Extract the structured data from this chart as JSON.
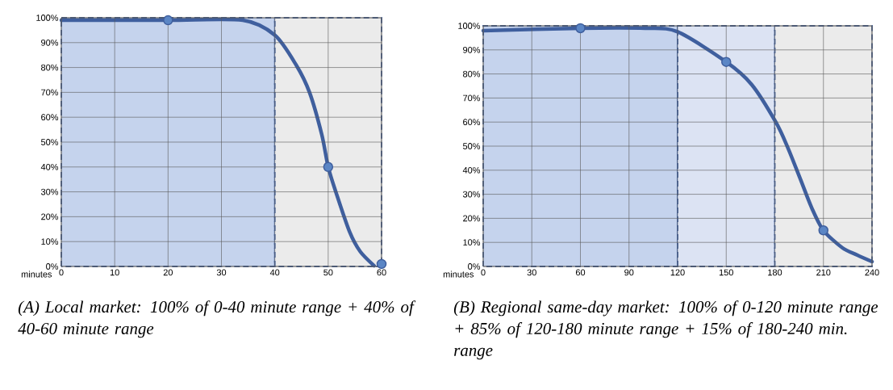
{
  "chart_data": [
    {
      "type": "line",
      "xlabel": "minutes",
      "xlim": [
        0,
        60
      ],
      "xticks": [
        0,
        10,
        20,
        30,
        40,
        50,
        60
      ],
      "ylim": [
        0,
        100
      ],
      "yticks": [
        {
          "value": 0,
          "label": "0%"
        },
        {
          "value": 10,
          "label": "10%"
        },
        {
          "value": 20,
          "label": "20%"
        },
        {
          "value": 30,
          "label": "30%"
        },
        {
          "value": 40,
          "label": "40%"
        },
        {
          "value": 50,
          "label": "50%"
        },
        {
          "value": 60,
          "label": "60%"
        },
        {
          "value": 70,
          "label": "70%"
        },
        {
          "value": 80,
          "label": "80%"
        },
        {
          "value": 90,
          "label": "90%"
        },
        {
          "value": 100,
          "label": "100%"
        }
      ],
      "grid": true,
      "bands": [
        {
          "axis": "x",
          "from": 0,
          "to": 40,
          "color": "#c5d3ed"
        },
        {
          "axis": "x",
          "from": 40,
          "to": 60,
          "color": "#ebebeb"
        }
      ],
      "series": [
        {
          "marker": "none",
          "color": "#3f5f9e",
          "x": [
            0,
            20,
            34,
            40,
            44,
            46.5,
            48.8,
            50,
            51.5,
            54,
            56,
            58.6
          ],
          "values": [
            99,
            99,
            99,
            93,
            81,
            70,
            53,
            40,
            29.5,
            14,
            6,
            0.3
          ]
        },
        {
          "type": "scatter",
          "marker": "circle",
          "color": "#5b86c5",
          "x": [
            20,
            50,
            60
          ],
          "values": [
            99,
            40,
            1
          ]
        }
      ],
      "annotations": [
        "*(A) Local market: 100% of 0-40 minute range + 40% of 40-60 minute range*"
      ]
    },
    {
      "type": "line",
      "xlabel": "minutes",
      "xlim": [
        0,
        240
      ],
      "xticks": [
        0,
        30,
        60,
        90,
        120,
        150,
        180,
        210,
        240
      ],
      "ylim": [
        0,
        100
      ],
      "yticks": [
        {
          "value": 0,
          "label": "0%"
        },
        {
          "value": 10,
          "label": "10%"
        },
        {
          "value": 20,
          "label": "20%"
        },
        {
          "value": 30,
          "label": "30%"
        },
        {
          "value": 40,
          "label": "40%"
        },
        {
          "value": 50,
          "label": "50%"
        },
        {
          "value": 60,
          "label": "60%"
        },
        {
          "value": 70,
          "label": "70%"
        },
        {
          "value": 80,
          "label": "80%"
        },
        {
          "value": 90,
          "label": "90%"
        },
        {
          "value": 100,
          "label": "100%"
        }
      ],
      "grid": true,
      "bands": [
        {
          "axis": "x",
          "from": 0,
          "to": 120,
          "color": "#c5d3ed"
        },
        {
          "axis": "x",
          "from": 120,
          "to": 180,
          "color": "#dce3f3"
        },
        {
          "axis": "x",
          "from": 180,
          "to": 240,
          "color": "#ebebeb"
        }
      ],
      "series": [
        {
          "marker": "none",
          "color": "#3f5f9e",
          "x": [
            0,
            60,
            100,
            120,
            150,
            165.7,
            180.6,
            188,
            195.5,
            203,
            210,
            221.6,
            231,
            240
          ],
          "values": [
            98,
            99,
            99,
            97.5,
            85,
            75.6,
            60,
            49.4,
            36.8,
            24,
            15,
            7.8,
            4.7,
            2
          ]
        },
        {
          "type": "scatter",
          "marker": "circle",
          "color": "#5b86c5",
          "x": [
            60,
            150,
            210
          ],
          "values": [
            99,
            85,
            15
          ]
        }
      ],
      "annotations": [
        "*(B) Regional same-day market: 100% of 0-120 minute range + 85% of 120-180 minute range + 15% of 180-240 min. range*"
      ]
    }
  ]
}
